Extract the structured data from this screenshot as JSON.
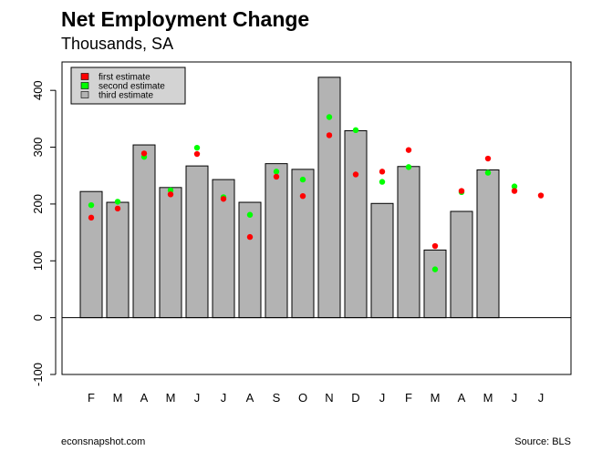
{
  "chart_data": {
    "type": "bar",
    "title": "Net Employment Change",
    "subtitle": "Thousands, SA",
    "categories": [
      "F",
      "M",
      "A",
      "M",
      "J",
      "J",
      "A",
      "S",
      "O",
      "N",
      "D",
      "J",
      "F",
      "M",
      "A",
      "M",
      "J",
      "J"
    ],
    "series": [
      {
        "name": "third estimate",
        "type": "bar",
        "color": "#b3b3b3",
        "values": [
          222,
          203,
          304,
          229,
          267,
          243,
          203,
          271,
          261,
          423,
          329,
          201,
          266,
          119,
          187,
          260,
          null,
          null
        ]
      },
      {
        "name": "second estimate",
        "type": "points",
        "color": "#00ff00",
        "values": [
          198,
          204,
          283,
          224,
          299,
          212,
          181,
          257,
          243,
          353,
          330,
          239,
          265,
          85,
          221,
          255,
          231,
          null
        ]
      },
      {
        "name": "first estimate",
        "type": "points",
        "color": "#ff0000",
        "values": [
          176,
          192,
          289,
          217,
          288,
          209,
          142,
          248,
          214,
          321,
          252,
          257,
          295,
          126,
          223,
          280,
          223,
          215
        ]
      }
    ],
    "ylim": [
      -100,
      450
    ],
    "yticks": [
      -100,
      0,
      100,
      200,
      300,
      400
    ],
    "legend": {
      "position": "top-left",
      "entries": [
        "first estimate",
        "second estimate",
        "third estimate"
      ]
    },
    "zero_line": true
  },
  "footer": {
    "left": "econsnapshot.com",
    "right": "Source: BLS"
  }
}
